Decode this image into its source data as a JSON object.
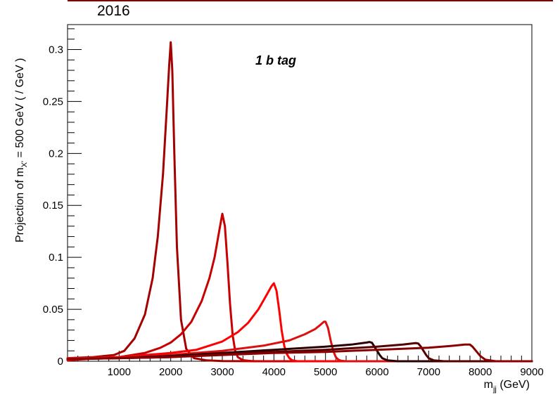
{
  "header": {
    "year": "2016"
  },
  "chart_data": {
    "type": "line",
    "title": "",
    "annotation": "1 b tag",
    "xlabel_main": "m",
    "xlabel_sub": "jj",
    "xlabel_unit": " (GeV)",
    "ylabel_pre": "Projection of m",
    "ylabel_sub": "X'",
    "ylabel_post": " = 500 GeV ( / GeV )",
    "xlim": [
      0,
      9000
    ],
    "ylim": [
      0,
      0.324
    ],
    "x_ticks": [
      1000,
      2000,
      3000,
      4000,
      5000,
      6000,
      7000,
      8000,
      9000
    ],
    "x_tick_labels": [
      "1000",
      "2000",
      "3000",
      "4000",
      "5000",
      "6000",
      "7000",
      "8000",
      "9000"
    ],
    "y_ticks": [
      0,
      0.05,
      0.1,
      0.15,
      0.2,
      0.25,
      0.3
    ],
    "y_tick_labels": [
      "0",
      "0.05",
      "0.1",
      "0.15",
      "0.2",
      "0.25",
      "0.3"
    ],
    "grid": false,
    "legend": "none",
    "series": [
      {
        "color": "#a50000",
        "x": [
          0,
          500,
          900,
          1100,
          1300,
          1500,
          1650,
          1750,
          1850,
          1920,
          1970,
          2000,
          2030,
          2070,
          2120,
          2200,
          2300,
          2450,
          2700,
          3000,
          4000,
          9000
        ],
        "y": [
          0.003,
          0.004,
          0.006,
          0.01,
          0.022,
          0.045,
          0.08,
          0.12,
          0.18,
          0.24,
          0.285,
          0.307,
          0.28,
          0.2,
          0.11,
          0.04,
          0.012,
          0.003,
          0.0008,
          0.0002,
          0,
          0
        ]
      },
      {
        "color": "#c80000",
        "x": [
          0,
          1000,
          1500,
          1800,
          2000,
          2200,
          2400,
          2600,
          2750,
          2850,
          2950,
          3000,
          3050,
          3100,
          3150,
          3200,
          3250,
          3300,
          3400,
          3600,
          4000,
          9000
        ],
        "y": [
          0.002,
          0.004,
          0.008,
          0.013,
          0.018,
          0.026,
          0.038,
          0.058,
          0.08,
          0.1,
          0.128,
          0.142,
          0.13,
          0.095,
          0.055,
          0.025,
          0.01,
          0.004,
          0.001,
          0,
          0,
          0
        ]
      },
      {
        "color": "#ff0000",
        "x": [
          0,
          1000,
          2000,
          2500,
          3000,
          3300,
          3500,
          3700,
          3850,
          3950,
          4000,
          4050,
          4100,
          4150,
          4200,
          4250,
          4300,
          4350,
          4450,
          4600,
          5000,
          9000
        ],
        "y": [
          0.001,
          0.004,
          0.008,
          0.011,
          0.019,
          0.028,
          0.037,
          0.05,
          0.063,
          0.072,
          0.075,
          0.068,
          0.05,
          0.03,
          0.015,
          0.007,
          0.003,
          0.001,
          0,
          0,
          0,
          0
        ]
      },
      {
        "color": "#dd1010",
        "x": [
          0,
          1000,
          2000,
          3000,
          3800,
          4300,
          4600,
          4800,
          4900,
          4970,
          5000,
          5050,
          5100,
          5150,
          5200,
          5250,
          5300,
          5400,
          6000,
          9000
        ],
        "y": [
          0.003,
          0.004,
          0.006,
          0.01,
          0.015,
          0.02,
          0.026,
          0.031,
          0.035,
          0.038,
          0.038,
          0.032,
          0.02,
          0.01,
          0.004,
          0.0015,
          0.0005,
          0,
          0,
          0
        ]
      },
      {
        "color": "#2a0000",
        "x": [
          0,
          1000,
          2000,
          3000,
          4000,
          5000,
          5500,
          5800,
          5850,
          5900,
          5950,
          6000,
          6050,
          6100,
          6200,
          6400,
          9000
        ],
        "y": [
          0.002,
          0.003,
          0.005,
          0.008,
          0.011,
          0.014,
          0.016,
          0.018,
          0.0185,
          0.0178,
          0.014,
          0.01,
          0.006,
          0.003,
          0.0008,
          0,
          0
        ]
      },
      {
        "color": "#550000",
        "x": [
          0,
          1000,
          2000,
          3000,
          4000,
          5000,
          6000,
          6500,
          6750,
          6800,
          6850,
          6900,
          6950,
          7000,
          7100,
          7300,
          9000
        ],
        "y": [
          0.002,
          0.003,
          0.004,
          0.007,
          0.009,
          0.011,
          0.014,
          0.016,
          0.0175,
          0.017,
          0.014,
          0.01,
          0.006,
          0.003,
          0.0008,
          0,
          0
        ]
      },
      {
        "color": "#8a0000",
        "x": [
          0,
          1000,
          2000,
          3000,
          4000,
          5000,
          6000,
          7000,
          7500,
          7700,
          7800,
          7850,
          7900,
          8000,
          8100,
          8300,
          9000
        ],
        "y": [
          0.002,
          0.003,
          0.004,
          0.006,
          0.008,
          0.009,
          0.011,
          0.013,
          0.015,
          0.016,
          0.016,
          0.014,
          0.011,
          0.005,
          0.0015,
          0,
          0
        ]
      }
    ]
  }
}
